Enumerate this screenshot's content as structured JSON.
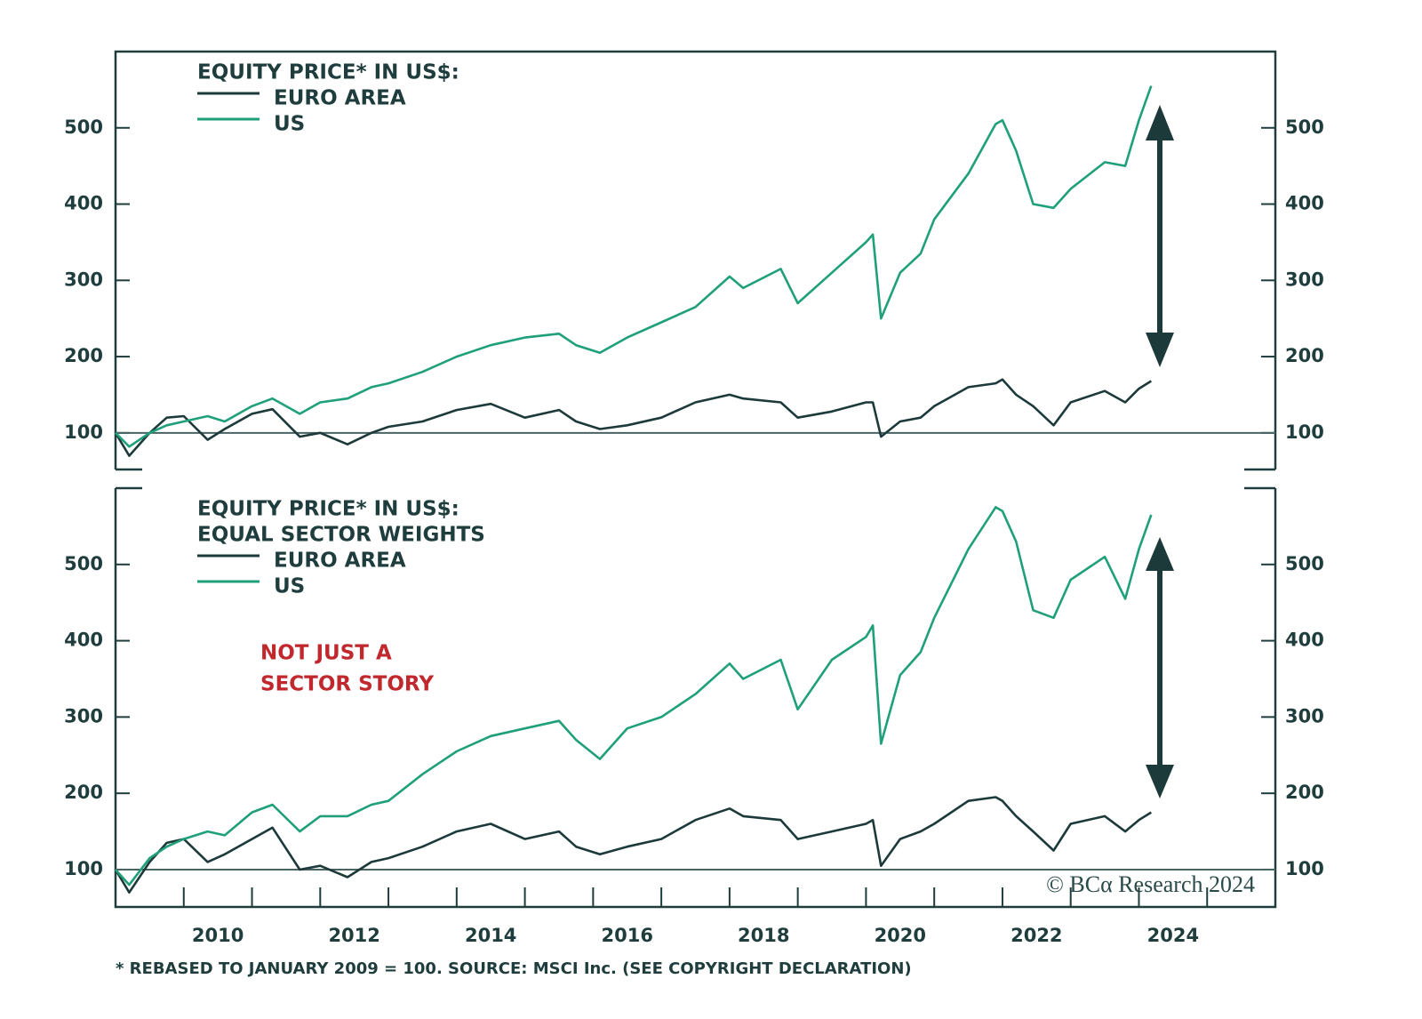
{
  "chart_data": [
    {
      "type": "line",
      "title": "EQUITY PRICE* IN US$:",
      "x": [
        2009.0,
        2009.2,
        2009.5,
        2009.75,
        2010.0,
        2010.35,
        2010.6,
        2011.0,
        2011.3,
        2011.7,
        2012.0,
        2012.4,
        2012.75,
        2013.0,
        2013.5,
        2014.0,
        2014.5,
        2015.0,
        2015.5,
        2015.75,
        2016.1,
        2016.5,
        2017.0,
        2017.5,
        2018.0,
        2018.2,
        2018.75,
        2019.0,
        2019.5,
        2020.0,
        2020.1,
        2020.22,
        2020.5,
        2020.8,
        2021.0,
        2021.5,
        2021.9,
        2022.0,
        2022.2,
        2022.45,
        2022.75,
        2023.0,
        2023.5,
        2023.8,
        2024.0,
        2024.18
      ],
      "series": [
        {
          "name": "EURO AREA",
          "color": "#1d3a3a",
          "values": [
            100,
            70,
            100,
            120,
            122,
            91,
            105,
            125,
            131,
            95,
            100,
            85,
            100,
            108,
            115,
            130,
            138,
            120,
            130,
            115,
            105,
            110,
            120,
            140,
            150,
            145,
            140,
            120,
            128,
            140,
            140,
            95,
            115,
            120,
            135,
            160,
            165,
            170,
            150,
            135,
            110,
            140,
            155,
            140,
            158,
            168
          ]
        },
        {
          "name": "US",
          "color": "#1fa07a",
          "values": [
            100,
            82,
            100,
            110,
            115,
            122,
            115,
            135,
            145,
            125,
            140,
            145,
            160,
            165,
            180,
            200,
            215,
            225,
            230,
            215,
            205,
            225,
            245,
            265,
            305,
            290,
            315,
            270,
            310,
            350,
            360,
            250,
            310,
            335,
            380,
            440,
            505,
            510,
            470,
            400,
            395,
            420,
            455,
            450,
            510,
            555
          ]
        }
      ],
      "xlim": [
        2009,
        2026
      ],
      "ylim": [
        52,
        600
      ],
      "yticks": [
        100,
        200,
        300,
        400,
        500
      ],
      "baseline": 100
    },
    {
      "type": "line",
      "title": "EQUITY PRICE* IN US$:",
      "subtitle": "EQUAL SECTOR WEIGHTS",
      "annotations": [
        "NOT JUST A",
        "SECTOR STORY"
      ],
      "x": [
        2009.0,
        2009.2,
        2009.5,
        2009.75,
        2010.0,
        2010.35,
        2010.6,
        2011.0,
        2011.3,
        2011.7,
        2012.0,
        2012.4,
        2012.75,
        2013.0,
        2013.5,
        2014.0,
        2014.5,
        2015.0,
        2015.5,
        2015.75,
        2016.1,
        2016.5,
        2017.0,
        2017.5,
        2018.0,
        2018.2,
        2018.75,
        2019.0,
        2019.5,
        2020.0,
        2020.1,
        2020.22,
        2020.5,
        2020.8,
        2021.0,
        2021.5,
        2021.9,
        2022.0,
        2022.2,
        2022.45,
        2022.75,
        2023.0,
        2023.5,
        2023.8,
        2024.0,
        2024.18
      ],
      "series": [
        {
          "name": "EURO AREA",
          "color": "#1d3a3a",
          "values": [
            100,
            70,
            110,
            135,
            140,
            110,
            120,
            140,
            155,
            100,
            105,
            90,
            110,
            115,
            130,
            150,
            160,
            140,
            150,
            130,
            120,
            130,
            140,
            165,
            180,
            170,
            165,
            140,
            150,
            160,
            165,
            105,
            140,
            150,
            160,
            190,
            195,
            190,
            170,
            150,
            125,
            160,
            170,
            150,
            165,
            175
          ]
        },
        {
          "name": "US",
          "color": "#1fa07a",
          "values": [
            100,
            80,
            115,
            130,
            140,
            150,
            145,
            175,
            185,
            150,
            170,
            170,
            185,
            190,
            225,
            255,
            275,
            285,
            295,
            270,
            245,
            285,
            300,
            330,
            370,
            350,
            375,
            310,
            375,
            405,
            420,
            265,
            355,
            385,
            430,
            520,
            575,
            570,
            530,
            440,
            430,
            480,
            510,
            455,
            520,
            565
          ]
        }
      ],
      "xlim": [
        2009,
        2026
      ],
      "ylim": [
        51,
        600
      ],
      "yticks": [
        100,
        200,
        300,
        400,
        500
      ],
      "baseline": 100,
      "xticks": [
        2010,
        2011,
        2012,
        2013,
        2014,
        2015,
        2016,
        2017,
        2018,
        2019,
        2020,
        2021,
        2022,
        2023,
        2024,
        2025
      ],
      "xticklabels": [
        2010,
        2012,
        2014,
        2016,
        2018,
        2020,
        2022,
        2024
      ]
    }
  ],
  "copyright": "© BCα Research 2024",
  "footnote": "* REBASED TO JANUARY 2009 = 100. SOURCE: MSCI Inc. (SEE COPYRIGHT DECLARATION)"
}
